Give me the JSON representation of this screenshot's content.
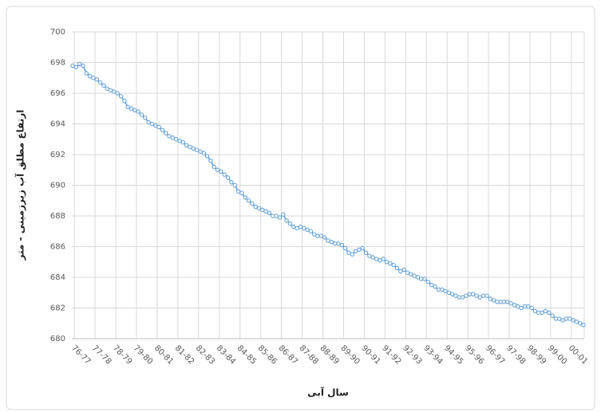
{
  "chart_data": {
    "type": "line",
    "y_axis_label": "ارتفاع مطلق آب زیرزمینی - متر",
    "x_axis_label": "سال آبی",
    "ylim": [
      680,
      700
    ],
    "yticks": [
      680,
      682,
      684,
      686,
      688,
      690,
      692,
      694,
      696,
      698,
      700
    ],
    "grid": true,
    "categories": [
      null,
      "76-77",
      null,
      null,
      null,
      null,
      null,
      "77-78",
      null,
      null,
      null,
      null,
      null,
      "78-79",
      null,
      null,
      null,
      null,
      null,
      "79-80",
      null,
      null,
      null,
      null,
      null,
      "80-81",
      null,
      null,
      null,
      null,
      null,
      "81-82",
      null,
      null,
      null,
      null,
      null,
      "82-83",
      null,
      null,
      null,
      null,
      null,
      "83-84",
      null,
      null,
      null,
      null,
      null,
      "84-85",
      null,
      null,
      null,
      null,
      null,
      "85-86",
      null,
      null,
      null,
      null,
      null,
      "86-87",
      null,
      null,
      null,
      null,
      null,
      "87-88",
      null,
      null,
      null,
      null,
      null,
      "88-89",
      null,
      null,
      null,
      null,
      null,
      "89-90",
      null,
      null,
      null,
      null,
      null,
      "90-91",
      null,
      null,
      null,
      null,
      null,
      "91-92",
      null,
      null,
      null,
      null,
      null,
      "92-93",
      null,
      null,
      null,
      null,
      null,
      "93-94",
      null,
      null,
      null,
      null,
      null,
      "94-95",
      null,
      null,
      null,
      null,
      null,
      "95-96",
      null,
      null,
      null,
      null,
      null,
      "96-97",
      null,
      null,
      null,
      null,
      null,
      "97-98",
      null,
      null,
      null,
      null,
      null,
      "98-99",
      null,
      null,
      null,
      null,
      null,
      "99-00",
      null,
      null,
      null,
      null,
      null,
      "00-01",
      null,
      null,
      null
    ],
    "series": [
      {
        "color": "#5b9bd5",
        "values": [
          697.8,
          697.7,
          697.9,
          697.8,
          697.3,
          697.1,
          697.0,
          696.9,
          696.7,
          696.5,
          696.3,
          696.2,
          696.1,
          696.0,
          695.8,
          695.5,
          695.1,
          695.0,
          694.9,
          694.8,
          694.6,
          694.4,
          694.1,
          694.0,
          693.9,
          693.8,
          693.6,
          693.4,
          693.2,
          693.1,
          693.0,
          692.9,
          692.8,
          692.6,
          692.5,
          692.4,
          692.3,
          692.2,
          692.1,
          691.9,
          691.6,
          691.2,
          691.0,
          690.9,
          690.7,
          690.5,
          690.2,
          690.0,
          689.6,
          689.5,
          689.2,
          689.0,
          688.8,
          688.6,
          688.5,
          688.4,
          688.3,
          688.2,
          688.0,
          688.0,
          687.9,
          688.1,
          687.7,
          687.5,
          687.3,
          687.2,
          687.3,
          687.2,
          687.1,
          687.0,
          686.8,
          686.7,
          686.7,
          686.6,
          686.4,
          686.3,
          686.2,
          686.2,
          686.1,
          685.9,
          685.6,
          685.5,
          685.7,
          685.8,
          685.9,
          685.6,
          685.4,
          685.3,
          685.2,
          685.1,
          685.2,
          685.0,
          684.9,
          684.8,
          684.6,
          684.4,
          684.5,
          684.3,
          684.2,
          684.1,
          684.0,
          683.9,
          683.9,
          683.7,
          683.5,
          683.4,
          683.2,
          683.2,
          683.1,
          683.0,
          682.9,
          682.8,
          682.7,
          682.7,
          682.8,
          682.9,
          682.9,
          682.8,
          682.7,
          682.8,
          682.8,
          682.6,
          682.5,
          682.4,
          682.4,
          682.4,
          682.4,
          682.3,
          682.2,
          682.1,
          682.0,
          682.1,
          682.1,
          682.0,
          681.8,
          681.7,
          681.7,
          681.8,
          681.7,
          681.5,
          681.3,
          681.3,
          681.2,
          681.3,
          681.3,
          681.2,
          681.1,
          681.0,
          680.9
        ]
      }
    ]
  }
}
